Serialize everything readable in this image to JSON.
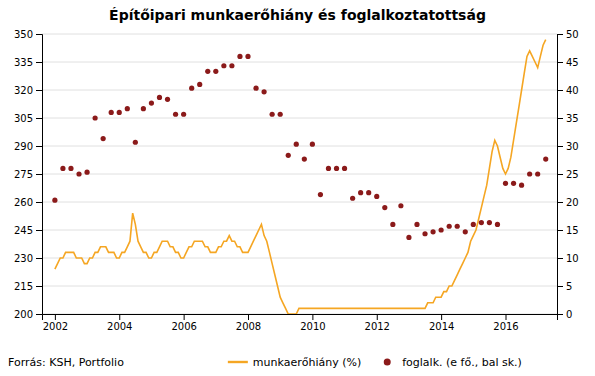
{
  "chart_data": {
    "type": "combo",
    "title": "Építőipari munkaerőhiány és foglalkoztatottság",
    "source": "Forrás: KSH, Portfolio",
    "grid": true,
    "legend": "bottom",
    "xlim": [
      2001.6,
      2017.6
    ],
    "xticks": [
      2002,
      2004,
      2006,
      2008,
      2010,
      2012,
      2014,
      2016
    ],
    "ylim": [
      200,
      350
    ],
    "yticks": [
      200,
      215,
      230,
      245,
      260,
      275,
      290,
      305,
      320,
      335,
      350
    ],
    "y2lim": [
      0,
      50
    ],
    "y2ticks": [
      0,
      5,
      10,
      15,
      20,
      25,
      30,
      35,
      40,
      45,
      50
    ],
    "series": [
      {
        "name": "munkaerőhiány (%)",
        "type": "line",
        "axis": "y2",
        "color": "#F5A623",
        "x": [
          2002.0,
          2002.083,
          2002.167,
          2002.25,
          2002.333,
          2002.417,
          2002.5,
          2002.583,
          2002.667,
          2002.75,
          2002.833,
          2002.917,
          2003.0,
          2003.083,
          2003.167,
          2003.25,
          2003.333,
          2003.417,
          2003.5,
          2003.583,
          2003.667,
          2003.75,
          2003.833,
          2003.917,
          2004.0,
          2004.083,
          2004.167,
          2004.25,
          2004.333,
          2004.417,
          2004.5,
          2004.583,
          2004.667,
          2004.75,
          2004.833,
          2004.917,
          2005.0,
          2005.083,
          2005.167,
          2005.25,
          2005.333,
          2005.417,
          2005.5,
          2005.583,
          2005.667,
          2005.75,
          2005.833,
          2005.917,
          2006.0,
          2006.083,
          2006.167,
          2006.25,
          2006.333,
          2006.417,
          2006.5,
          2006.583,
          2006.667,
          2006.75,
          2006.833,
          2006.917,
          2007.0,
          2007.083,
          2007.167,
          2007.25,
          2007.333,
          2007.417,
          2007.5,
          2007.583,
          2007.667,
          2007.75,
          2007.833,
          2007.917,
          2008.0,
          2008.083,
          2008.167,
          2008.25,
          2008.333,
          2008.417,
          2008.5,
          2008.583,
          2008.667,
          2008.75,
          2008.833,
          2008.917,
          2009.0,
          2009.083,
          2009.167,
          2009.25,
          2009.333,
          2009.417,
          2009.5,
          2009.583,
          2009.667,
          2009.75,
          2009.833,
          2009.917,
          2010.0,
          2010.083,
          2010.167,
          2010.25,
          2010.333,
          2010.417,
          2010.5,
          2010.583,
          2010.667,
          2010.75,
          2010.833,
          2010.917,
          2011.0,
          2011.083,
          2011.167,
          2011.25,
          2011.333,
          2011.417,
          2011.5,
          2011.583,
          2011.667,
          2011.75,
          2011.833,
          2011.917,
          2012.0,
          2012.083,
          2012.167,
          2012.25,
          2012.333,
          2012.417,
          2012.5,
          2012.583,
          2012.667,
          2012.75,
          2012.833,
          2012.917,
          2013.0,
          2013.083,
          2013.167,
          2013.25,
          2013.333,
          2013.417,
          2013.5,
          2013.583,
          2013.667,
          2013.75,
          2013.833,
          2013.917,
          2014.0,
          2014.083,
          2014.167,
          2014.25,
          2014.333,
          2014.417,
          2014.5,
          2014.583,
          2014.667,
          2014.75,
          2014.833,
          2014.917,
          2015.0,
          2015.083,
          2015.167,
          2015.25,
          2015.333,
          2015.417,
          2015.5,
          2015.583,
          2015.667,
          2015.75,
          2015.833,
          2015.917,
          2016.0,
          2016.083,
          2016.167,
          2016.25,
          2016.333,
          2016.417,
          2016.5,
          2016.583,
          2016.667,
          2016.75,
          2016.833,
          2016.917,
          2017.0,
          2017.083,
          2017.167,
          2017.25
        ],
        "values": [
          8,
          9,
          10,
          10,
          11,
          11,
          11,
          11,
          10,
          10,
          10,
          9,
          9,
          10,
          10,
          11,
          11,
          12,
          12,
          12,
          11,
          11,
          11,
          10,
          10,
          11,
          11,
          12,
          13,
          18,
          16,
          13,
          12,
          11,
          11,
          10,
          10,
          11,
          11,
          12,
          13,
          13,
          13,
          12,
          12,
          11,
          11,
          10,
          10,
          11,
          12,
          12,
          13,
          13,
          13,
          13,
          12,
          12,
          11,
          11,
          11,
          12,
          12,
          13,
          13,
          14,
          13,
          13,
          12,
          12,
          11,
          11,
          11,
          12,
          13,
          14,
          15,
          16,
          14,
          13,
          11,
          9,
          7,
          5,
          3,
          2,
          1,
          0,
          0,
          0,
          0,
          1,
          1,
          1,
          1,
          1,
          1,
          1,
          1,
          1,
          1,
          1,
          1,
          1,
          1,
          1,
          1,
          1,
          1,
          1,
          1,
          1,
          1,
          1,
          1,
          1,
          1,
          1,
          1,
          1,
          1,
          1,
          1,
          1,
          1,
          1,
          1,
          1,
          1,
          1,
          1,
          1,
          1,
          1,
          1,
          1,
          1,
          1,
          1,
          2,
          2,
          2,
          3,
          3,
          3,
          4,
          4,
          5,
          5,
          6,
          7,
          8,
          9,
          10,
          11,
          13,
          14,
          15,
          17,
          19,
          21,
          23,
          26,
          29,
          31,
          30,
          28,
          26,
          25,
          26,
          28,
          31,
          34,
          37,
          40,
          43,
          46,
          47,
          46,
          45,
          44,
          46,
          48,
          49
        ]
      },
      {
        "name": "foglalk. (e fő., bal sk.)",
        "type": "scatter",
        "color": "#8B1A1A",
        "x": [
          2002.0,
          2002.25,
          2002.5,
          2002.75,
          2003.0,
          2003.25,
          2003.5,
          2003.75,
          2004.0,
          2004.25,
          2004.5,
          2004.75,
          2005.0,
          2005.25,
          2005.5,
          2005.75,
          2006.0,
          2006.25,
          2006.5,
          2006.75,
          2007.0,
          2007.25,
          2007.5,
          2007.75,
          2008.0,
          2008.25,
          2008.5,
          2008.75,
          2009.0,
          2009.25,
          2009.5,
          2009.75,
          2010.0,
          2010.25,
          2010.5,
          2010.75,
          2011.0,
          2011.25,
          2011.5,
          2011.75,
          2012.0,
          2012.25,
          2012.5,
          2012.75,
          2013.0,
          2013.25,
          2013.5,
          2013.75,
          2014.0,
          2014.25,
          2014.5,
          2014.75,
          2015.0,
          2015.25,
          2015.5,
          2015.75,
          2016.0,
          2016.25,
          2016.5,
          2016.75,
          2017.0,
          2017.25
        ],
        "values": [
          261,
          278,
          278,
          275,
          276,
          305,
          294,
          308,
          308,
          310,
          292,
          310,
          313,
          316,
          315,
          307,
          307,
          321,
          323,
          330,
          330,
          333,
          333,
          338,
          338,
          321,
          319,
          307,
          307,
          285,
          291,
          283,
          291,
          264,
          278,
          278,
          278,
          262,
          265,
          265,
          263,
          257,
          248,
          258,
          241,
          248,
          243,
          244,
          245,
          247,
          247,
          244,
          248,
          249,
          249,
          248,
          270,
          270,
          269,
          275,
          275,
          283
        ]
      }
    ]
  }
}
